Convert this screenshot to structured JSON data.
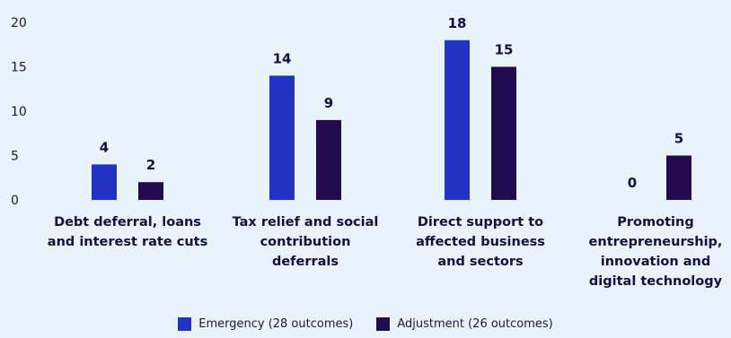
{
  "chart_data": {
    "type": "bar",
    "categories": [
      [
        "Debt deferral, loans",
        "and interest rate cuts"
      ],
      [
        "Tax relief and social",
        "contribution",
        "deferrals"
      ],
      [
        "Direct support to",
        "affected business",
        "and sectors"
      ],
      [
        "Promoting",
        "entrepreneurship,",
        "innovation and",
        "digital technology"
      ]
    ],
    "series": [
      {
        "name": "Emergency (28 outcomes)",
        "values": [
          4,
          14,
          18,
          0
        ],
        "color": "#2233c4"
      },
      {
        "name": "Adjustment (26 outcomes)",
        "values": [
          2,
          9,
          15,
          5
        ],
        "color": "#220b4e"
      }
    ],
    "ylim": [
      0,
      20
    ],
    "yticks": [
      0,
      5,
      10,
      15,
      20
    ],
    "grid": false,
    "legend": "bottom"
  }
}
